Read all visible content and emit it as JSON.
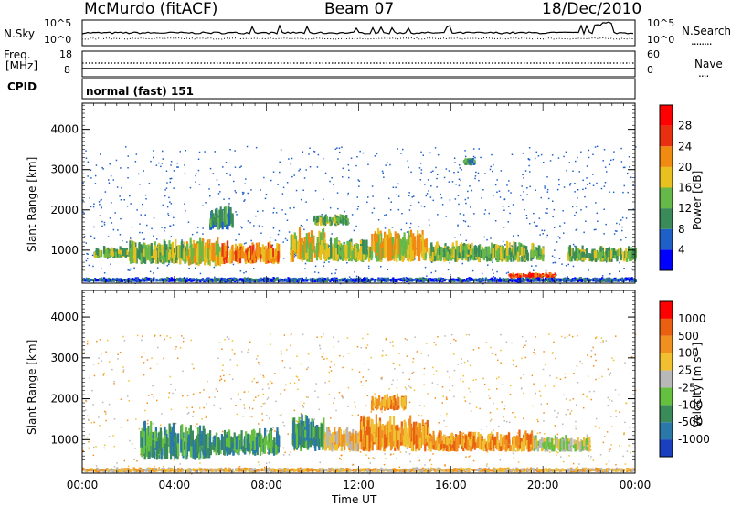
{
  "header": {
    "station": "McMurdo (fitACF)",
    "beam": "Beam 07",
    "date": "18/Dec/2010"
  },
  "top_panel": {
    "left_label": "N.Sky",
    "left_ticks": [
      "10^5",
      "10^0"
    ],
    "right_label": "N.Search",
    "right_ticks": [
      "10^5",
      "10^0"
    ],
    "legend_marker": "........"
  },
  "freq_panel": {
    "left_label_1": "Freq.",
    "left_label_2": "[MHz]",
    "left_ticks": [
      "18",
      "8"
    ],
    "right_label": "Nave",
    "right_ticks": [
      "60",
      "0"
    ],
    "legend_marker": "...."
  },
  "cpid_panel": {
    "label": "CPID",
    "value": "normal (fast) 151"
  },
  "chart_data": [
    {
      "type": "heatmap",
      "name": "Power",
      "ylabel": "Slant Range [km]",
      "ylim": [
        180,
        4650
      ],
      "yticks": [
        "1000",
        "2000",
        "3000",
        "4000"
      ],
      "colorbar_label": "Power [dB]",
      "colorbar_ticks": [
        "4",
        "8",
        "12",
        "16",
        "20",
        "24",
        "28"
      ],
      "colorbar_colors": [
        "#0000ff",
        "#1f5fc8",
        "#3a8a5a",
        "#66b848",
        "#e8c020",
        "#f08a10",
        "#e83010",
        "#ff0000"
      ],
      "echo_bands": [
        {
          "t0": 0.5,
          "t1": 2.0,
          "r0": 800,
          "r1": 1100,
          "c": 3
        },
        {
          "t0": 2.0,
          "t1": 4.5,
          "r0": 650,
          "r1": 1250,
          "c": 3
        },
        {
          "t0": 4.5,
          "t1": 6.0,
          "r0": 600,
          "r1": 1300,
          "c": 4
        },
        {
          "t0": 6.0,
          "t1": 8.5,
          "r0": 650,
          "r1": 1200,
          "c": 5
        },
        {
          "t0": 9.0,
          "t1": 10.5,
          "r0": 700,
          "r1": 1500,
          "c": 4
        },
        {
          "t0": 10.5,
          "t1": 12.5,
          "r0": 700,
          "r1": 1300,
          "c": 3
        },
        {
          "t0": 12.5,
          "t1": 15.0,
          "r0": 700,
          "r1": 1500,
          "c": 4
        },
        {
          "t0": 15.0,
          "t1": 20.0,
          "r0": 700,
          "r1": 1200,
          "c": 3
        },
        {
          "t0": 18.5,
          "t1": 20.5,
          "r0": 300,
          "r1": 450,
          "c": 6
        },
        {
          "t0": 21.0,
          "t1": 24.0,
          "r0": 700,
          "r1": 1100,
          "c": 3
        },
        {
          "t0": 5.5,
          "t1": 6.5,
          "r0": 1500,
          "r1": 2100,
          "c": 2
        },
        {
          "t0": 10.0,
          "t1": 11.5,
          "r0": 1600,
          "r1": 1900,
          "c": 3
        },
        {
          "t0": 16.5,
          "t1": 17.0,
          "r0": 3100,
          "r1": 3300,
          "c": 2
        },
        {
          "t0": 0.0,
          "t1": 24.0,
          "r0": 200,
          "r1": 330,
          "c": 1
        }
      ]
    },
    {
      "type": "heatmap",
      "name": "Velocity",
      "ylabel": "Slant Range [km]",
      "ylim": [
        180,
        4650
      ],
      "yticks": [
        "1000",
        "2000",
        "3000",
        "4000"
      ],
      "colorbar_label": "Velocity [m s⁻¹]",
      "colorbar_ticks": [
        "1000",
        "500",
        "100",
        "25",
        "-25",
        "-100",
        "-500",
        "-1000"
      ],
      "colorbar_colors": [
        "#1a40c0",
        "#2a78a8",
        "#3a8a5a",
        "#66c040",
        "#b8b8b8",
        "#f0c030",
        "#f09020",
        "#e86010",
        "#ff0000"
      ],
      "echo_bands": [
        {
          "t0": 2.5,
          "t1": 5.5,
          "r0": 500,
          "r1": 1400,
          "c": 2
        },
        {
          "t0": 5.5,
          "t1": 7.0,
          "r0": 600,
          "r1": 1200,
          "c": 2
        },
        {
          "t0": 7.0,
          "t1": 8.5,
          "r0": 600,
          "r1": 1300,
          "c": 2
        },
        {
          "t0": 9.0,
          "t1": 10.5,
          "r0": 700,
          "r1": 1600,
          "c": 2
        },
        {
          "t0": 10.5,
          "t1": 12.0,
          "r0": 700,
          "r1": 1300,
          "c": 5
        },
        {
          "t0": 12.0,
          "t1": 15.0,
          "r0": 700,
          "r1": 1600,
          "c": 6
        },
        {
          "t0": 15.0,
          "t1": 19.5,
          "r0": 700,
          "r1": 1200,
          "c": 6
        },
        {
          "t0": 19.5,
          "t1": 22.0,
          "r0": 700,
          "r1": 1100,
          "c": 4
        },
        {
          "t0": 12.5,
          "t1": 14.0,
          "r0": 1700,
          "r1": 2100,
          "c": 6
        },
        {
          "t0": 0.0,
          "t1": 24.0,
          "r0": 200,
          "r1": 320,
          "c": 5
        }
      ]
    }
  ],
  "xaxis": {
    "ticks": [
      "00:00",
      "04:00",
      "08:00",
      "12:00",
      "16:00",
      "20:00",
      "00:00"
    ],
    "label": "Time UT",
    "range_hours": [
      0,
      24
    ]
  }
}
